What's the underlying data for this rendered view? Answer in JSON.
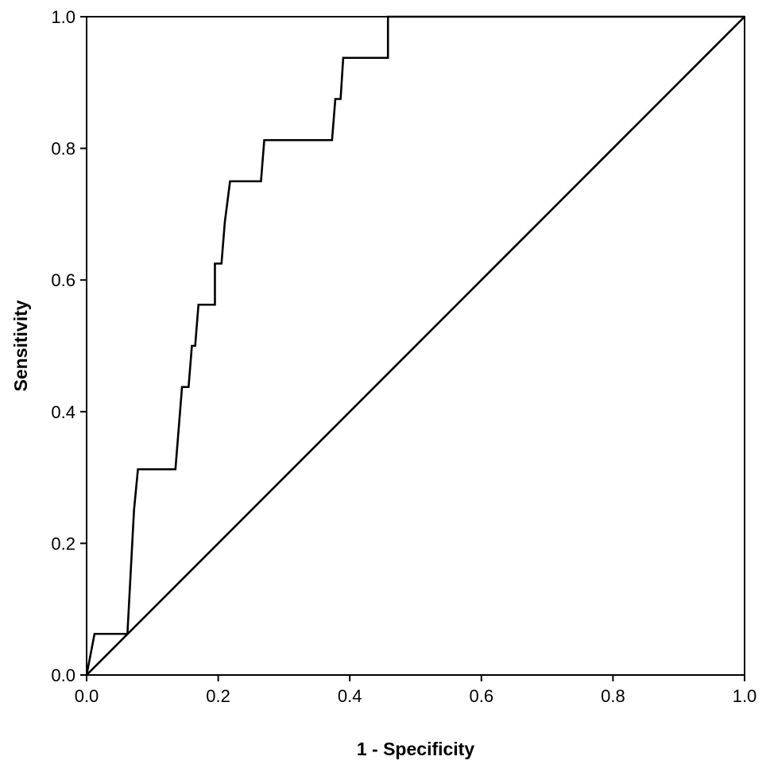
{
  "chart_data": {
    "type": "line",
    "title": "",
    "xlabel": "1 - Specificity",
    "ylabel": "Sensitivity",
    "xlim": [
      0.0,
      1.0
    ],
    "ylim": [
      0.0,
      1.0
    ],
    "x_ticks": [
      "0.0",
      "0.2",
      "0.4",
      "0.6",
      "0.8",
      "1.0"
    ],
    "y_ticks": [
      "0.0",
      "0.2",
      "0.4",
      "0.6",
      "0.8",
      "1.0"
    ],
    "grid": false,
    "legend": "none",
    "colors": {
      "line": "#000000",
      "frame": "#000000",
      "background": "#ffffff"
    },
    "series": [
      {
        "x": [
          0.0,
          0.012,
          0.012,
          0.062,
          0.062,
          0.072,
          0.078,
          0.078,
          0.135,
          0.135,
          0.145,
          0.145,
          0.155,
          0.16,
          0.16,
          0.165,
          0.17,
          0.175,
          0.175,
          0.195,
          0.195,
          0.205,
          0.21,
          0.21,
          0.218,
          0.218,
          0.265,
          0.27,
          0.27,
          0.373,
          0.378,
          0.378,
          0.386,
          0.39,
          0.395,
          0.395,
          0.458,
          0.458,
          1.0
        ],
        "y": [
          0.0,
          0.0625,
          0.0625,
          0.0625,
          0.0625,
          0.25,
          0.3125,
          0.3125,
          0.3125,
          0.3125,
          0.4375,
          0.4375,
          0.4375,
          0.5,
          0.5,
          0.5,
          0.5625,
          0.5625,
          0.5625,
          0.5625,
          0.625,
          0.625,
          0.6875,
          0.6875,
          0.75,
          0.75,
          0.75,
          0.8125,
          0.8125,
          0.8125,
          0.875,
          0.875,
          0.875,
          0.9375,
          0.9375,
          0.9375,
          0.9375,
          1.0,
          1.0
        ]
      },
      {
        "x": [
          0.0,
          1.0
        ],
        "y": [
          0.0,
          1.0
        ]
      }
    ]
  }
}
